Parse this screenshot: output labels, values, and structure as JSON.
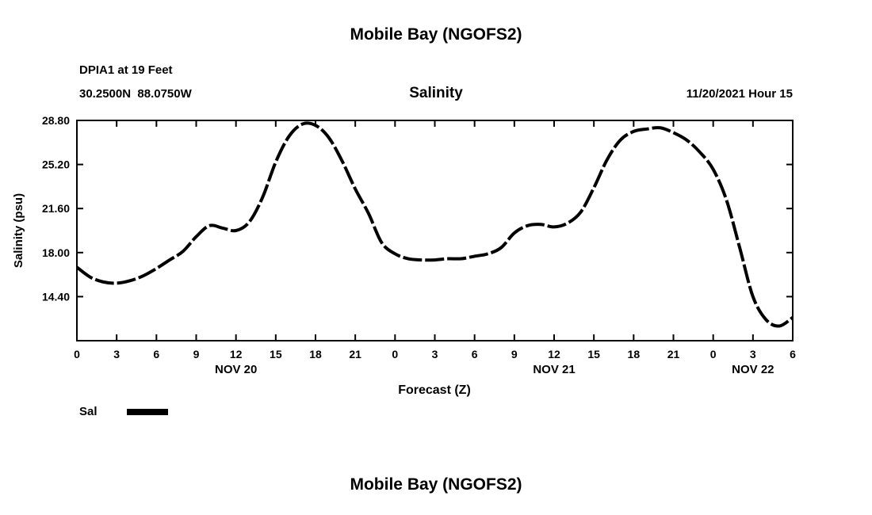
{
  "page": {
    "top_title": "Mobile Bay (NGOFS2)",
    "bottom_title": "Mobile Bay (NGOFS2)"
  },
  "chart_data": {
    "type": "line",
    "title": "Salinity",
    "station": "DPIA1 at 19 Feet",
    "coordinates": "30.2500N  88.0750W",
    "forecast_datetime": "11/20/2021 Hour 15",
    "ylabel": "Salinity (psu)",
    "xlabel": "Forecast (Z)",
    "legend": {
      "label": "Sal",
      "color": "#000000"
    },
    "line_color": "#000000",
    "grid": false,
    "ylim": [
      10.8,
      28.8
    ],
    "yticks": [
      "14.40",
      "18.00",
      "21.60",
      "25.20",
      "28.80"
    ],
    "x_total_hours": 54,
    "xtick_hours": [
      0,
      3,
      6,
      9,
      12,
      15,
      18,
      21,
      24,
      27,
      30,
      33,
      36,
      39,
      42,
      45,
      48,
      51,
      54
    ],
    "xtick_labels": [
      "0",
      "3",
      "6",
      "9",
      "12",
      "15",
      "18",
      "21",
      "0",
      "3",
      "6",
      "9",
      "12",
      "15",
      "18",
      "21",
      "0",
      "3",
      "6"
    ],
    "date_labels": [
      {
        "hour": 12,
        "label": "NOV 20"
      },
      {
        "hour": 36,
        "label": "NOV 21"
      },
      {
        "hour": 51,
        "label": "NOV 22"
      }
    ],
    "series": [
      {
        "name": "Sal",
        "x_start_hour": 0,
        "step_hours": 1,
        "values": [
          16.8,
          16.0,
          15.6,
          15.5,
          15.7,
          16.1,
          16.7,
          17.4,
          18.1,
          19.3,
          20.2,
          20.0,
          19.8,
          20.5,
          22.5,
          25.4,
          27.5,
          28.5,
          28.4,
          27.4,
          25.5,
          23.2,
          21.2,
          18.8,
          17.9,
          17.5,
          17.4,
          17.4,
          17.5,
          17.5,
          17.7,
          17.9,
          18.4,
          19.6,
          20.2,
          20.3,
          20.1,
          20.4,
          21.3,
          23.3,
          25.6,
          27.2,
          27.9,
          28.1,
          28.2,
          27.8,
          27.2,
          26.2,
          24.8,
          22.3,
          18.4,
          14.4,
          12.5,
          12.0,
          12.7
        ]
      }
    ]
  }
}
